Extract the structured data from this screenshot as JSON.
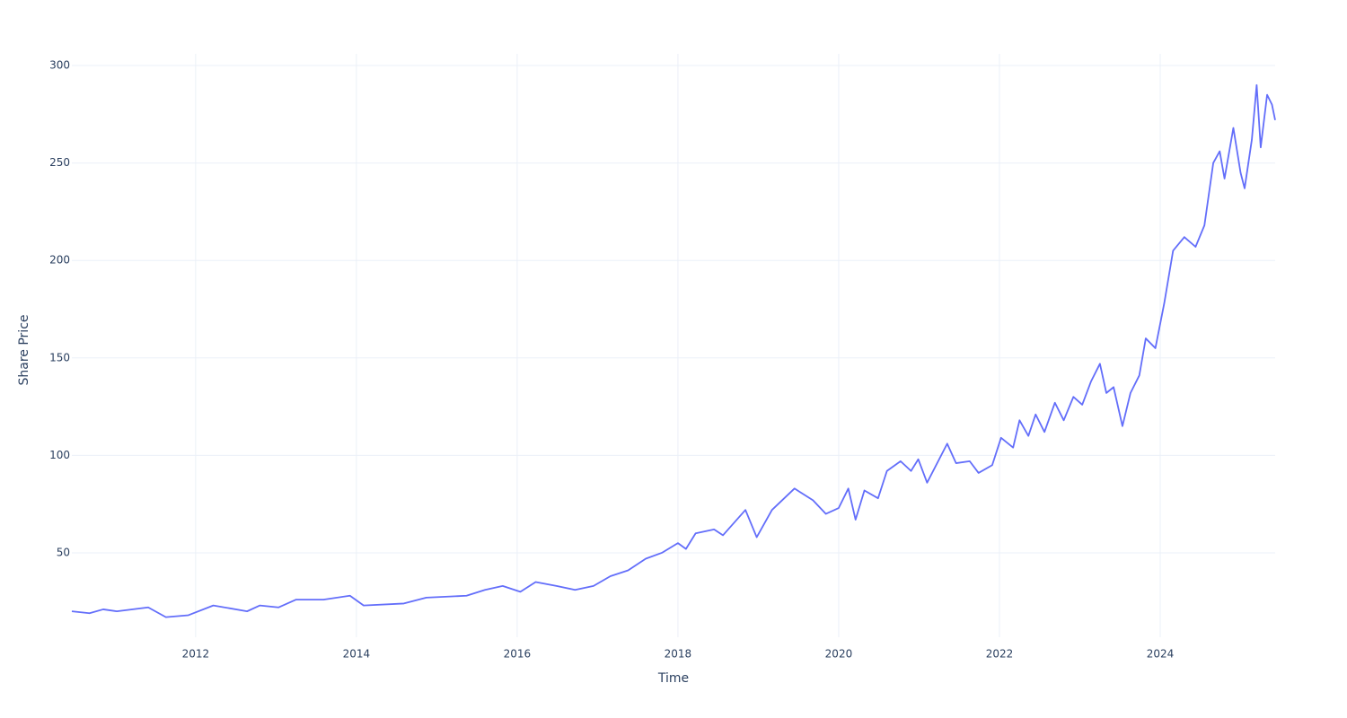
{
  "chart_data": {
    "type": "line",
    "xlabel": "Time",
    "ylabel": "Share Price",
    "x": [
      2010.46,
      2010.68,
      2010.85,
      2011.02,
      2011.41,
      2011.63,
      2011.91,
      2012.22,
      2012.64,
      2012.8,
      2013.03,
      2013.25,
      2013.59,
      2013.92,
      2014.09,
      2014.59,
      2014.87,
      2015.37,
      2015.6,
      2015.82,
      2016.04,
      2016.23,
      2016.49,
      2016.72,
      2016.95,
      2017.16,
      2017.38,
      2017.6,
      2017.8,
      2018.0,
      2018.1,
      2018.22,
      2018.45,
      2018.56,
      2018.84,
      2018.98,
      2019.17,
      2019.45,
      2019.68,
      2019.84,
      2020.0,
      2020.12,
      2020.21,
      2020.32,
      2020.49,
      2020.6,
      2020.77,
      2020.9,
      2020.99,
      2021.1,
      2021.35,
      2021.46,
      2021.63,
      2021.74,
      2021.91,
      2022.02,
      2022.17,
      2022.25,
      2022.36,
      2022.45,
      2022.56,
      2022.69,
      2022.8,
      2022.92,
      2023.03,
      2023.14,
      2023.25,
      2023.33,
      2023.42,
      2023.53,
      2023.63,
      2023.74,
      2023.82,
      2023.94,
      2024.05,
      2024.16,
      2024.3,
      2024.44,
      2024.55,
      2024.66,
      2024.74,
      2024.8,
      2024.91,
      2025.0,
      2025.05,
      2025.14,
      2025.2,
      2025.25,
      2025.33,
      2025.39,
      2025.43
    ],
    "values": [
      20,
      19,
      21,
      20,
      22,
      17,
      18,
      23,
      20,
      23,
      22,
      26,
      26,
      28,
      23,
      24,
      27,
      28,
      31,
      33,
      30,
      35,
      33,
      31,
      33,
      38,
      41,
      47,
      50,
      55,
      52,
      60,
      62,
      59,
      72,
      58,
      72,
      83,
      77,
      70,
      73,
      83,
      67,
      82,
      78,
      92,
      97,
      92,
      98,
      86,
      106,
      96,
      97,
      91,
      95,
      109,
      104,
      118,
      110,
      121,
      112,
      127,
      118,
      130,
      126,
      138,
      147,
      132,
      135,
      115,
      132,
      141,
      160,
      155,
      178,
      205,
      212,
      207,
      218,
      250,
      256,
      242,
      268,
      245,
      237,
      262,
      290,
      258,
      285,
      280,
      272
    ],
    "color": "#636efa",
    "xlim": [
      2010.46,
      2025.43
    ],
    "xticks": [
      2012,
      2014,
      2016,
      2018,
      2020,
      2022,
      2024
    ],
    "ylim": [
      6.7,
      306
    ],
    "yticks": [
      50,
      100,
      150,
      200,
      250,
      300
    ],
    "grid": true
  }
}
